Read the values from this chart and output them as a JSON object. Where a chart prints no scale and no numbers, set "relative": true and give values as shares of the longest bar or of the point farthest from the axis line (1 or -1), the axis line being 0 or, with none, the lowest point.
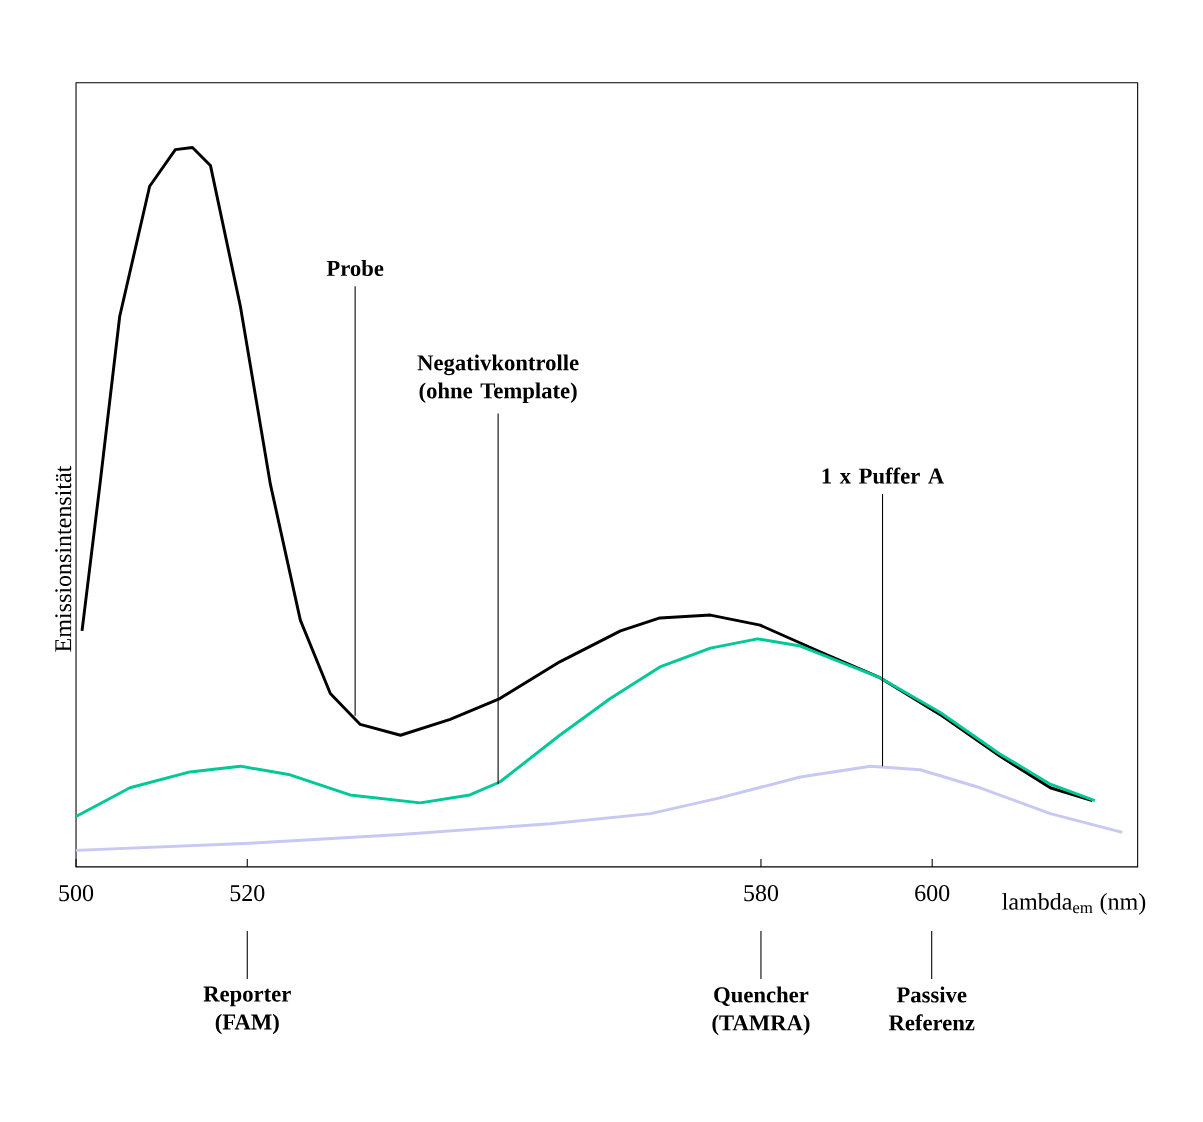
{
  "chart_data": {
    "type": "line",
    "relative": true,
    "xlabel": "lambda$_{em}$ (nm)",
    "ylabel": "Emissionsintensität",
    "xlim": [
      500,
      624
    ],
    "xticks": [
      500,
      520,
      580,
      600
    ],
    "tick_labels": "x",
    "grid": false,
    "line_style": "solid",
    "marker": "none",
    "series": [
      {
        "color": "#000000",
        "x": [
          500.7,
          502.8,
          505.1,
          508.6,
          511.6,
          513.6,
          515.7,
          519.2,
          522.7,
          526.2,
          529.7,
          533.2,
          537.9,
          543.7,
          549.5,
          556.5,
          563.6,
          568.2,
          574.1,
          579.9,
          586.9,
          593.9,
          600.9,
          607.9,
          613.8,
          618.7
        ],
        "values": [
          0.328,
          0.532,
          0.765,
          0.946,
          0.997,
          1.0,
          0.975,
          0.779,
          0.532,
          0.343,
          0.241,
          0.198,
          0.183,
          0.205,
          0.234,
          0.285,
          0.328,
          0.346,
          0.35,
          0.336,
          0.299,
          0.263,
          0.212,
          0.154,
          0.11,
          0.092
        ]
      },
      {
        "color": "#00c896",
        "x": [
          500,
          506.3,
          513.3,
          519.2,
          525.0,
          532.0,
          540.2,
          546.0,
          549.5,
          556.5,
          562.4,
          568.2,
          574.1,
          579.6,
          584.6,
          593.9,
          600.9,
          607.9,
          613.8,
          619.0
        ],
        "values": [
          0.07,
          0.11,
          0.132,
          0.14,
          0.128,
          0.1,
          0.089,
          0.1,
          0.118,
          0.183,
          0.234,
          0.278,
          0.304,
          0.317,
          0.307,
          0.263,
          0.215,
          0.157,
          0.115,
          0.092
        ]
      },
      {
        "color": "#c8c8f5",
        "x": [
          500,
          520.3,
          537.9,
          555.4,
          567.1,
          575.2,
          584.6,
          592.8,
          598.6,
          605.6,
          613.8,
          622.2
        ],
        "values": [
          0.023,
          0.033,
          0.045,
          0.06,
          0.074,
          0.096,
          0.125,
          0.14,
          0.135,
          0.11,
          0.074,
          0.048
        ]
      }
    ],
    "annotations": [
      {
        "text": "Probe",
        "x": 532.6,
        "y": 0.21
      },
      {
        "text": "Negativkontrolle (ohne Template)",
        "x": 549.3,
        "y": 0.115
      },
      {
        "text": "1 x Puffer A",
        "x": 594.2,
        "y": 0.14
      },
      {
        "text": "Reporter (FAM)",
        "x": 520
      },
      {
        "text": "Quencher (TAMRA)",
        "x": 580
      },
      "Passive Referenz"
    ]
  }
}
